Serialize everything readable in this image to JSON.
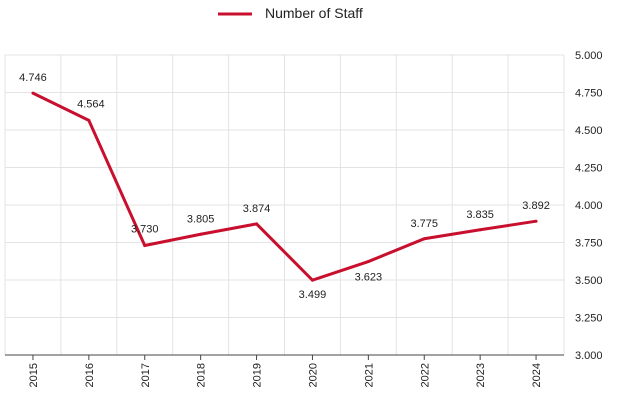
{
  "chart_data": {
    "type": "line",
    "title": "",
    "xlabel": "",
    "ylabel": "",
    "categories": [
      "2015",
      "2016",
      "2017",
      "2018",
      "2019",
      "2020",
      "2021",
      "2022",
      "2023",
      "2024"
    ],
    "series": [
      {
        "name": "Number of Staff",
        "values": [
          4.746,
          4.564,
          3.73,
          3.805,
          3.874,
          3.499,
          3.623,
          3.775,
          3.835,
          3.892
        ],
        "data_labels": [
          "4.746",
          "4.564",
          "3.730",
          "3.805",
          "3.874",
          "3.499",
          "3.623",
          "3.775",
          "3.835",
          "3.892"
        ],
        "color": "#c8102e"
      }
    ],
    "y_ticks": [
      "3.000",
      "3.250",
      "3.500",
      "3.750",
      "4.000",
      "4.250",
      "4.500",
      "4.750",
      "5.000"
    ],
    "ylim": [
      3.0,
      5.0
    ],
    "y_axis_side": "right",
    "grid": true,
    "legend_position": "top-center",
    "gridline_color": "#e3e3e3",
    "axis_color": "#444444"
  }
}
